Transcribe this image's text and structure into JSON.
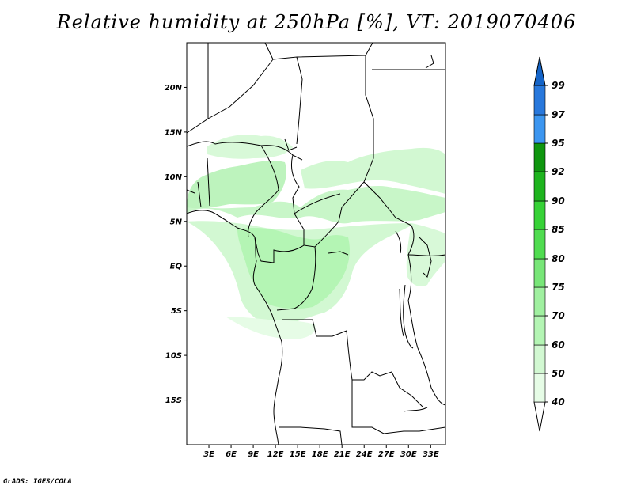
{
  "title": "Relative humidity at 250hPa [%], VT: 2019070406",
  "footer": "GrADS: IGES/COLA",
  "map": {
    "lon_range": [
      0,
      35
    ],
    "lat_range": [
      -20,
      25
    ],
    "lat_ticks": [
      "20N",
      "15N",
      "10N",
      "5N",
      "EQ",
      "5S",
      "10S",
      "15S"
    ],
    "lon_ticks": [
      "3E",
      "6E",
      "9E",
      "12E",
      "15E",
      "18E",
      "21E",
      "24E",
      "27E",
      "30E",
      "33E"
    ]
  },
  "colorbar": {
    "labels": [
      "40",
      "50",
      "60",
      "70",
      "75",
      "80",
      "85",
      "90",
      "92",
      "95",
      "97",
      "99"
    ],
    "colors": [
      "#ffffff",
      "#e6fce6",
      "#d2f8d2",
      "#b4f5b4",
      "#a0f0a0",
      "#78e678",
      "#50dc50",
      "#37d237",
      "#1eb41e",
      "#0f960f",
      "#3c96f0",
      "#2878dc",
      "#1464c8"
    ]
  }
}
